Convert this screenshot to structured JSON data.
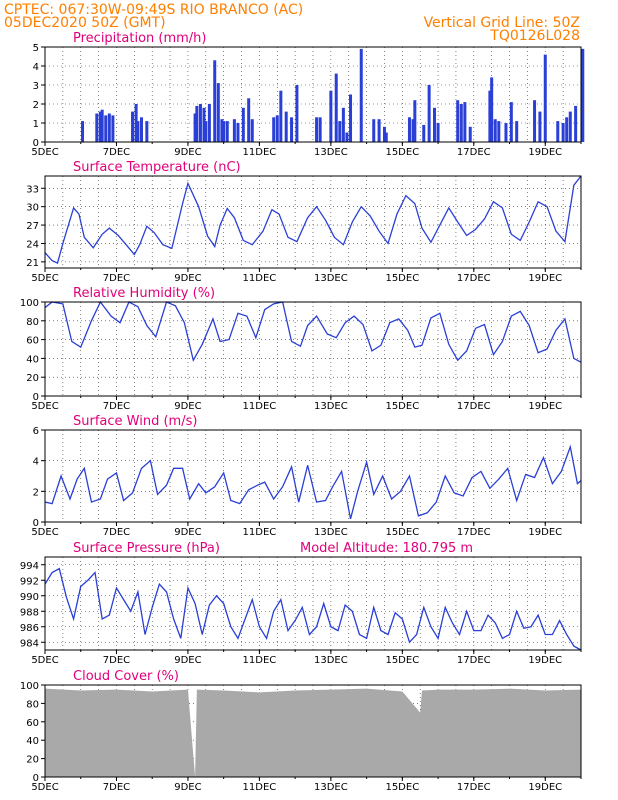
{
  "header": {
    "line1": "CPTEC:   067:30W-09:49S  RIO BRANCO (AC)",
    "line2": "05DEC2020 50Z (GMT)",
    "right1": "Vertical Grid Line: 50Z",
    "right2": "TQ0126L028"
  },
  "colors": {
    "series": "#2a3fd6",
    "cloud": "#a9a9a9",
    "header": "#ff7f00",
    "title": "#e0007a"
  },
  "x_labels": [
    "5DEC",
    "7DEC",
    "9DEC",
    "11DEC",
    "13DEC",
    "15DEC",
    "17DEC",
    "19DEC"
  ],
  "chart_data": [
    {
      "id": "precip",
      "type": "bar",
      "title": "Precipitation (mm/h)",
      "ylim": [
        0,
        5
      ],
      "yticks": [
        0,
        1,
        2,
        3,
        4,
        5
      ],
      "x_days": [
        0,
        15
      ],
      "note_x_unit": "days since 5DEC",
      "x": [
        1.05,
        1.45,
        1.55,
        1.6,
        1.7,
        1.8,
        1.9,
        2.45,
        2.55,
        2.6,
        2.7,
        2.85,
        4.2,
        4.25,
        4.35,
        4.45,
        4.5,
        4.6,
        4.75,
        4.85,
        4.95,
        5.0,
        5.1,
        5.3,
        5.4,
        5.55,
        5.7,
        5.8,
        6.4,
        6.5,
        6.6,
        6.75,
        6.9,
        7.05,
        7.6,
        7.7,
        8.0,
        8.15,
        8.25,
        8.35,
        8.45,
        8.55,
        8.85,
        9.2,
        9.35,
        9.5,
        9.55,
        10.2,
        10.3,
        10.35,
        10.6,
        10.75,
        10.9,
        11.0,
        11.55,
        11.65,
        11.75,
        11.9,
        12.45,
        12.5,
        12.6,
        12.7,
        12.9,
        13.05,
        13.2,
        13.7,
        13.85,
        14.0,
        14.35,
        14.5,
        14.6,
        14.7,
        14.85,
        15.05
      ],
      "values": [
        1.1,
        1.5,
        1.6,
        1.7,
        1.4,
        1.5,
        1.4,
        1.6,
        2.0,
        1.1,
        1.3,
        1.1,
        1.5,
        1.9,
        2.0,
        1.8,
        1.1,
        2.0,
        4.3,
        3.1,
        1.2,
        1.1,
        1.1,
        1.2,
        1.0,
        1.8,
        2.3,
        1.2,
        1.3,
        1.4,
        2.7,
        1.6,
        1.3,
        3.0,
        1.3,
        1.3,
        2.7,
        3.6,
        1.1,
        1.8,
        0.5,
        2.5,
        4.9,
        1.2,
        1.2,
        0.8,
        0.5,
        1.3,
        1.2,
        2.2,
        0.9,
        3.0,
        1.8,
        1.0,
        2.2,
        2.0,
        2.1,
        0.8,
        2.7,
        3.4,
        1.2,
        1.1,
        1.0,
        2.1,
        1.1,
        2.2,
        1.6,
        4.6,
        1.1,
        1.0,
        1.3,
        1.6,
        1.9,
        4.9
      ]
    },
    {
      "id": "temp",
      "type": "line",
      "title": "Surface Temperature (nC)",
      "ylim": [
        20,
        35
      ],
      "yticks": [
        21,
        24,
        27,
        30,
        33
      ],
      "x": [
        0,
        0.2,
        0.35,
        0.5,
        0.8,
        0.95,
        1.1,
        1.35,
        1.6,
        1.8,
        2.05,
        2.3,
        2.5,
        2.65,
        2.85,
        3.05,
        3.3,
        3.55,
        3.85,
        4.0,
        4.3,
        4.55,
        4.75,
        4.9,
        5.1,
        5.3,
        5.55,
        5.8,
        6.1,
        6.35,
        6.55,
        6.8,
        7.05,
        7.35,
        7.6,
        7.85,
        8.1,
        8.35,
        8.6,
        8.85,
        9.1,
        9.35,
        9.6,
        9.85,
        10.1,
        10.35,
        10.55,
        10.8,
        11.05,
        11.3,
        11.55,
        11.8,
        12.05,
        12.3,
        12.55,
        12.8,
        13.05,
        13.3,
        13.55,
        13.8,
        14.05,
        14.3,
        14.55,
        14.8,
        15.0
      ],
      "values": [
        22.5,
        21.2,
        20.8,
        24.0,
        29.8,
        28.8,
        25.0,
        23.3,
        25.5,
        26.5,
        25.3,
        23.6,
        22.2,
        23.8,
        26.8,
        25.8,
        23.8,
        23.2,
        30.5,
        33.8,
        30.0,
        25.2,
        23.5,
        27.0,
        29.7,
        28.2,
        24.5,
        23.8,
        26.0,
        29.5,
        28.8,
        25.0,
        24.3,
        28.2,
        30.0,
        27.8,
        25.0,
        23.8,
        27.5,
        30.0,
        28.5,
        26.0,
        24.0,
        28.8,
        31.8,
        30.5,
        26.5,
        24.2,
        27.0,
        29.8,
        27.5,
        25.3,
        26.3,
        28.0,
        30.8,
        29.8,
        25.5,
        24.5,
        27.5,
        30.8,
        30.0,
        26.0,
        24.3,
        33.5,
        35.0
      ]
    },
    {
      "id": "rh",
      "type": "line",
      "title": "Relative Humidity (%)",
      "ylim": [
        0,
        100
      ],
      "yticks": [
        0,
        20,
        40,
        60,
        80,
        100
      ],
      "x": [
        0,
        0.2,
        0.5,
        0.75,
        1.0,
        1.3,
        1.55,
        1.85,
        2.1,
        2.35,
        2.6,
        2.85,
        3.1,
        3.4,
        3.65,
        3.9,
        4.15,
        4.4,
        4.7,
        4.9,
        5.15,
        5.4,
        5.65,
        5.9,
        6.15,
        6.4,
        6.65,
        6.9,
        7.15,
        7.35,
        7.6,
        7.9,
        8.15,
        8.4,
        8.65,
        8.9,
        9.15,
        9.4,
        9.65,
        9.9,
        10.15,
        10.35,
        10.55,
        10.8,
        11.05,
        11.3,
        11.55,
        11.8,
        12.05,
        12.3,
        12.55,
        12.8,
        13.05,
        13.3,
        13.55,
        13.8,
        14.05,
        14.3,
        14.55,
        14.8,
        15.0
      ],
      "values": [
        94,
        100,
        98,
        58,
        52,
        80,
        100,
        85,
        78,
        100,
        95,
        75,
        63,
        100,
        96,
        78,
        38,
        55,
        82,
        58,
        60,
        88,
        85,
        62,
        92,
        98,
        100,
        58,
        53,
        75,
        85,
        66,
        62,
        78,
        85,
        76,
        48,
        54,
        78,
        82,
        70,
        52,
        54,
        83,
        88,
        55,
        38,
        48,
        72,
        76,
        44,
        58,
        85,
        90,
        75,
        46,
        50,
        70,
        82,
        40,
        36
      ]
    },
    {
      "id": "wind",
      "type": "line",
      "title": "Surface Wind (m/s)",
      "ylim": [
        0,
        6
      ],
      "yticks": [
        0,
        2,
        4,
        6
      ],
      "x": [
        0,
        0.2,
        0.45,
        0.7,
        0.9,
        1.1,
        1.3,
        1.55,
        1.75,
        2.0,
        2.2,
        2.45,
        2.7,
        2.95,
        3.15,
        3.4,
        3.6,
        3.85,
        4.05,
        4.3,
        4.5,
        4.75,
        5.0,
        5.2,
        5.45,
        5.7,
        5.95,
        6.15,
        6.4,
        6.65,
        6.9,
        7.1,
        7.35,
        7.6,
        7.85,
        8.05,
        8.3,
        8.55,
        8.75,
        9.0,
        9.2,
        9.45,
        9.7,
        9.95,
        10.2,
        10.45,
        10.7,
        10.95,
        11.2,
        11.45,
        11.7,
        11.95,
        12.2,
        12.45,
        12.7,
        12.95,
        13.2,
        13.45,
        13.7,
        13.95,
        14.2,
        14.45,
        14.7,
        14.9,
        15.0
      ],
      "values": [
        1.3,
        1.2,
        3.0,
        1.5,
        2.8,
        3.5,
        1.3,
        1.5,
        2.8,
        3.2,
        1.4,
        1.9,
        3.5,
        4.0,
        1.8,
        2.4,
        3.5,
        3.5,
        1.5,
        2.5,
        1.9,
        2.3,
        3.2,
        1.4,
        1.2,
        2.1,
        2.4,
        2.6,
        1.5,
        2.3,
        3.6,
        1.3,
        3.7,
        1.3,
        1.4,
        2.3,
        3.3,
        0.2,
        2.0,
        3.9,
        1.8,
        3.0,
        1.5,
        2.0,
        3.0,
        0.4,
        0.6,
        1.3,
        3.0,
        1.9,
        1.7,
        2.9,
        3.3,
        2.2,
        2.8,
        3.5,
        1.4,
        3.1,
        2.9,
        4.2,
        2.5,
        3.3,
        4.9,
        2.5,
        2.7
      ]
    },
    {
      "id": "pressure",
      "type": "line",
      "title": "Surface Pressure (hPa)",
      "subtitle": "Model Altitude: 180.795 m",
      "ylim": [
        983,
        995
      ],
      "yticks": [
        984,
        986,
        988,
        990,
        992,
        994
      ],
      "x": [
        0,
        0.2,
        0.4,
        0.6,
        0.8,
        1.0,
        1.2,
        1.4,
        1.6,
        1.8,
        2.0,
        2.2,
        2.4,
        2.6,
        2.8,
        3.0,
        3.2,
        3.4,
        3.6,
        3.8,
        4.0,
        4.2,
        4.4,
        4.6,
        4.8,
        5.0,
        5.2,
        5.4,
        5.6,
        5.8,
        6.0,
        6.2,
        6.4,
        6.6,
        6.8,
        7.0,
        7.2,
        7.4,
        7.6,
        7.8,
        8.0,
        8.2,
        8.4,
        8.6,
        8.8,
        9.0,
        9.2,
        9.4,
        9.6,
        9.8,
        10.0,
        10.2,
        10.4,
        10.6,
        10.8,
        11.0,
        11.2,
        11.4,
        11.6,
        11.8,
        12.0,
        12.2,
        12.4,
        12.6,
        12.8,
        13.0,
        13.2,
        13.4,
        13.6,
        13.8,
        14.0,
        14.2,
        14.4,
        14.6,
        14.8,
        15.0
      ],
      "values": [
        991.5,
        993.0,
        993.5,
        989.8,
        987.0,
        991.2,
        992.0,
        993.0,
        987.0,
        987.5,
        991.0,
        989.5,
        988.0,
        990.5,
        985.0,
        988.5,
        991.5,
        990.5,
        987.0,
        984.5,
        991.0,
        989.0,
        985.0,
        988.8,
        990.0,
        989.0,
        986.0,
        984.5,
        987.0,
        989.5,
        986.0,
        984.5,
        988.0,
        989.5,
        985.5,
        986.8,
        988.5,
        985.0,
        986.0,
        989.0,
        986.0,
        985.5,
        988.8,
        988.0,
        985.0,
        984.5,
        988.5,
        985.5,
        985.0,
        987.8,
        987.0,
        984.0,
        985.0,
        988.5,
        986.0,
        984.5,
        988.5,
        986.5,
        985.0,
        988.0,
        985.5,
        985.5,
        987.5,
        986.5,
        984.5,
        985.0,
        988.0,
        985.8,
        986.0,
        987.5,
        985.0,
        985.0,
        986.8,
        985.0,
        983.5,
        983.0
      ]
    },
    {
      "id": "cloud",
      "type": "area",
      "title": "Cloud Cover (%)",
      "ylim": [
        0,
        100
      ],
      "yticks": [
        0,
        20,
        40,
        60,
        80,
        100
      ],
      "x": [
        0,
        1,
        2,
        3,
        4,
        4.2,
        4.25,
        5,
        6,
        7,
        8,
        9,
        10,
        10.5,
        10.55,
        11,
        12,
        13,
        14,
        15
      ],
      "values": [
        96,
        94,
        95,
        93,
        95,
        0,
        95,
        94,
        92,
        94,
        95,
        96,
        93,
        70,
        94,
        95,
        95,
        96,
        94,
        95
      ]
    }
  ]
}
